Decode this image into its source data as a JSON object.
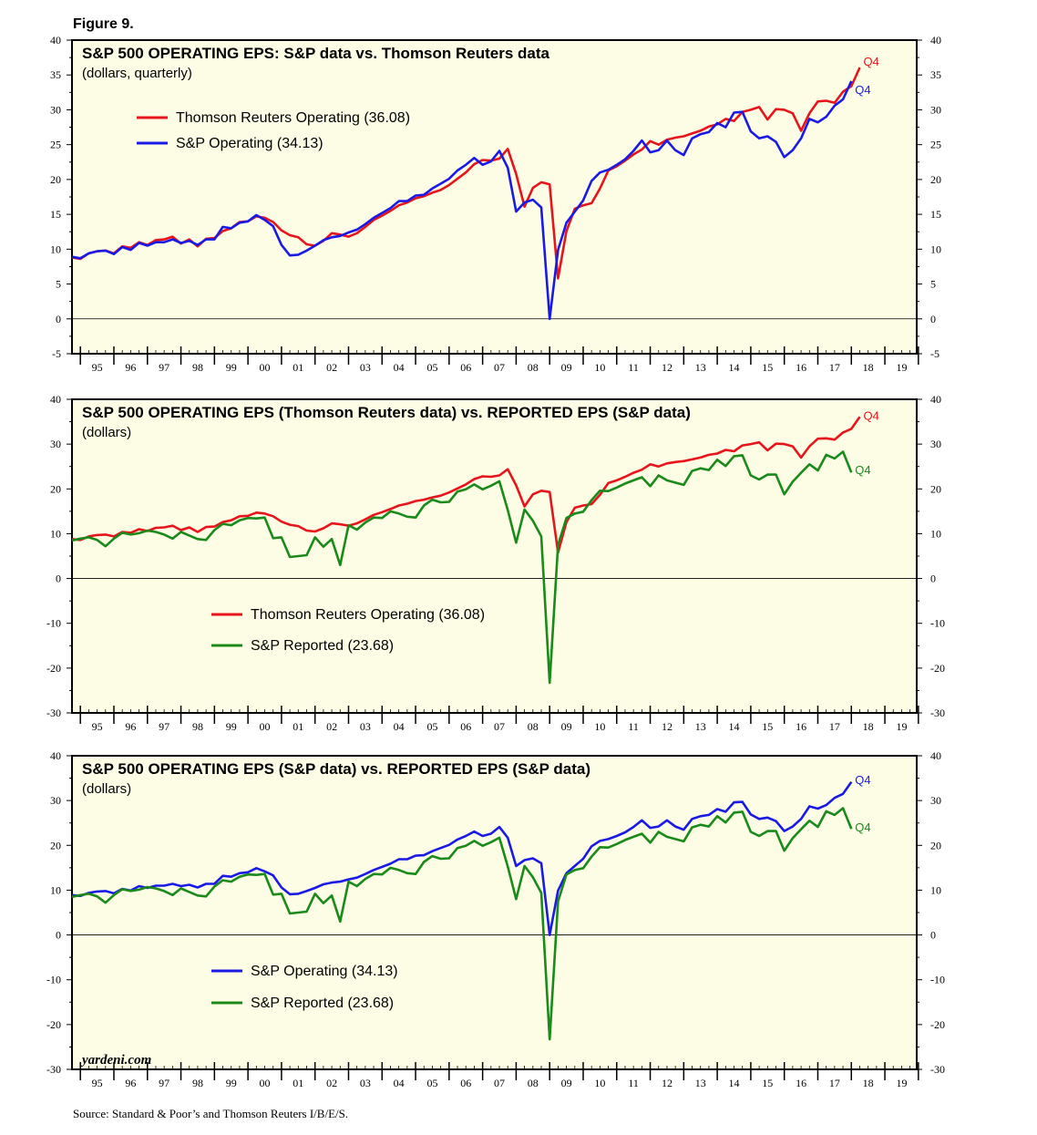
{
  "figure_label": "Figure 9.",
  "source": "Source: Standard & Poor’s and Thomson Reuters I/B/E/S.",
  "watermark": "yardeni.com",
  "colors": {
    "panel_bg": "#fdfde6",
    "thomson": "#e8141b",
    "sp_operating": "#1a1ae6",
    "sp_reported": "#1a8a1a"
  },
  "chart_data": [
    {
      "type": "line",
      "title": "S&P 500 OPERATING EPS: S&P data vs. Thomson Reuters data",
      "subtitle": "(dollars, quarterly)",
      "ylim": [
        -5,
        40
      ],
      "yticks": [
        -5,
        0,
        5,
        10,
        15,
        20,
        25,
        30,
        35,
        40
      ],
      "ytick_labels": [
        "-5",
        "0",
        "5",
        "10",
        "15",
        "20",
        "25",
        "30",
        "35",
        "40"
      ],
      "x_tick_labels": [
        "95",
        "96",
        "97",
        "98",
        "99",
        "00",
        "01",
        "02",
        "03",
        "04",
        "05",
        "06",
        "07",
        "08",
        "09",
        "10",
        "11",
        "12",
        "13",
        "14",
        "15",
        "16",
        "17",
        "18",
        "19"
      ],
      "x_start": "1994 Q4",
      "x_range_years": [
        1994.75,
        2019.95
      ],
      "legend": {
        "position": "upper-left",
        "series": [
          0,
          1
        ]
      },
      "series": [
        {
          "name": "Thomson Reuters Operating (36.08)",
          "color_key": "thomson",
          "end_label": "Q4",
          "values": [
            8.8,
            8.6,
            9.4,
            9.7,
            9.8,
            9.4,
            10.4,
            10.2,
            11.0,
            10.6,
            11.3,
            11.4,
            11.8,
            10.8,
            11.4,
            10.4,
            11.5,
            11.6,
            12.6,
            13.0,
            13.9,
            14.0,
            14.7,
            14.5,
            13.9,
            12.7,
            12.0,
            11.7,
            10.7,
            10.5,
            11.2,
            12.3,
            12.1,
            11.8,
            12.3,
            13.2,
            14.2,
            14.8,
            15.5,
            16.3,
            16.7,
            17.3,
            17.6,
            18.1,
            18.5,
            19.2,
            20.1,
            21.0,
            22.2,
            22.8,
            22.7,
            23.0,
            24.4,
            20.8,
            16.1,
            18.8,
            19.6,
            19.3,
            5.8,
            12.6,
            15.8,
            16.3,
            16.6,
            18.7,
            21.3,
            21.9,
            22.7,
            23.6,
            24.3,
            25.5,
            25.0,
            25.7,
            26.0,
            26.2,
            26.6,
            27.0,
            27.6,
            27.9,
            28.7,
            28.4,
            29.7,
            30.0,
            30.4,
            28.6,
            30.1,
            30.0,
            29.5,
            27.0,
            29.5,
            31.2,
            31.3,
            31.0,
            32.6,
            33.4,
            36.08
          ]
        },
        {
          "name": "S&P Operating (34.13)",
          "color_key": "sp_operating",
          "end_label": "Q4",
          "values": [
            8.9,
            8.7,
            9.4,
            9.7,
            9.8,
            9.3,
            10.3,
            9.9,
            10.9,
            10.5,
            11.0,
            11.0,
            11.4,
            10.9,
            11.2,
            10.6,
            11.4,
            11.4,
            13.2,
            13.0,
            13.8,
            14.0,
            14.9,
            14.2,
            13.3,
            10.6,
            9.1,
            9.2,
            9.8,
            10.5,
            11.3,
            11.7,
            11.9,
            12.4,
            12.8,
            13.6,
            14.5,
            15.2,
            15.9,
            16.9,
            16.9,
            17.7,
            17.8,
            18.7,
            19.4,
            20.1,
            21.3,
            22.1,
            23.1,
            22.1,
            22.6,
            24.1,
            21.7,
            15.4,
            16.7,
            17.1,
            16.0,
            0.0,
            9.9,
            13.8,
            15.4,
            17.0,
            19.8,
            21.0,
            21.4,
            22.1,
            22.9,
            24.1,
            25.6,
            23.9,
            24.2,
            25.6,
            24.2,
            23.5,
            25.9,
            26.5,
            26.8,
            28.1,
            27.5,
            29.6,
            29.7,
            26.9,
            25.9,
            26.2,
            25.4,
            23.2,
            24.2,
            25.9,
            28.7,
            28.2,
            29.0,
            30.6,
            31.5,
            34.13
          ]
        }
      ]
    },
    {
      "type": "line",
      "title": "S&P 500 OPERATING EPS (Thomson Reuters data) vs. REPORTED EPS (S&P data)",
      "subtitle": "(dollars)",
      "ylim": [
        -30,
        40
      ],
      "yticks": [
        -30,
        -20,
        -10,
        0,
        10,
        20,
        30,
        40
      ],
      "ytick_labels": [
        "-30",
        "-20",
        "-10",
        "0",
        "10",
        "20",
        "30",
        "40"
      ],
      "x_tick_labels": [
        "95",
        "96",
        "97",
        "98",
        "99",
        "00",
        "01",
        "02",
        "03",
        "04",
        "05",
        "06",
        "07",
        "08",
        "09",
        "10",
        "11",
        "12",
        "13",
        "14",
        "15",
        "16",
        "17",
        "18",
        "19"
      ],
      "x_start": "1994 Q4",
      "x_range_years": [
        1994.75,
        2019.95
      ],
      "legend": {
        "position": "lower-left",
        "series": [
          0,
          1
        ]
      },
      "series": [
        {
          "name": "Thomson Reuters Operating (36.08)",
          "color_key": "thomson",
          "end_label": "Q4",
          "values": [
            8.8,
            8.6,
            9.4,
            9.7,
            9.8,
            9.4,
            10.4,
            10.2,
            11.0,
            10.6,
            11.3,
            11.4,
            11.8,
            10.8,
            11.4,
            10.4,
            11.5,
            11.6,
            12.6,
            13.0,
            13.9,
            14.0,
            14.7,
            14.5,
            13.9,
            12.7,
            12.0,
            11.7,
            10.7,
            10.5,
            11.2,
            12.3,
            12.1,
            11.8,
            12.3,
            13.2,
            14.2,
            14.8,
            15.5,
            16.3,
            16.7,
            17.3,
            17.6,
            18.1,
            18.5,
            19.2,
            20.1,
            21.0,
            22.2,
            22.8,
            22.7,
            23.0,
            24.4,
            20.8,
            16.1,
            18.8,
            19.6,
            19.3,
            5.8,
            12.6,
            15.8,
            16.3,
            16.6,
            18.7,
            21.3,
            21.9,
            22.7,
            23.6,
            24.3,
            25.5,
            25.0,
            25.7,
            26.0,
            26.2,
            26.6,
            27.0,
            27.6,
            27.9,
            28.7,
            28.4,
            29.7,
            30.0,
            30.4,
            28.6,
            30.1,
            30.0,
            29.5,
            27.0,
            29.5,
            31.2,
            31.3,
            31.0,
            32.6,
            33.4,
            36.08
          ]
        },
        {
          "name": "S&P Reported (23.68)",
          "color_key": "sp_reported",
          "end_label": "Q4",
          "values": [
            8.5,
            8.9,
            9.2,
            8.6,
            7.2,
            8.9,
            10.2,
            9.8,
            10.1,
            10.7,
            10.4,
            9.8,
            8.9,
            10.4,
            9.6,
            8.8,
            8.6,
            10.8,
            12.2,
            11.9,
            13.0,
            13.5,
            13.4,
            13.6,
            9.0,
            9.2,
            4.8,
            5.0,
            5.2,
            9.2,
            7.1,
            8.8,
            3.0,
            11.9,
            10.9,
            12.5,
            13.6,
            13.5,
            15.0,
            14.5,
            13.8,
            13.6,
            16.3,
            17.6,
            17.0,
            17.1,
            19.4,
            19.9,
            21.0,
            19.9,
            20.7,
            21.7,
            15.3,
            8.0,
            15.4,
            12.9,
            9.4,
            -23.3,
            7.5,
            13.5,
            14.5,
            14.9,
            17.5,
            19.6,
            19.5,
            20.3,
            21.2,
            21.9,
            22.6,
            20.6,
            23.0,
            21.9,
            21.4,
            20.9,
            24.0,
            24.6,
            24.2,
            26.5,
            25.1,
            27.3,
            27.5,
            23.0,
            22.1,
            23.2,
            23.2,
            18.8,
            21.6,
            23.6,
            25.5,
            24.1,
            27.6,
            26.8,
            28.3,
            23.68
          ]
        }
      ]
    },
    {
      "type": "line",
      "title": "S&P 500 OPERATING EPS (S&P data) vs. REPORTED EPS (S&P data)",
      "subtitle": "(dollars)",
      "ylim": [
        -30,
        40
      ],
      "yticks": [
        -30,
        -20,
        -10,
        0,
        10,
        20,
        30,
        40
      ],
      "ytick_labels": [
        "-30",
        "-20",
        "-10",
        "0",
        "10",
        "20",
        "30",
        "40"
      ],
      "x_tick_labels": [
        "95",
        "96",
        "97",
        "98",
        "99",
        "00",
        "01",
        "02",
        "03",
        "04",
        "05",
        "06",
        "07",
        "08",
        "09",
        "10",
        "11",
        "12",
        "13",
        "14",
        "15",
        "16",
        "17",
        "18",
        "19"
      ],
      "x_start": "1994 Q4",
      "x_range_years": [
        1994.75,
        2019.95
      ],
      "legend": {
        "position": "lower-left",
        "series": [
          0,
          1
        ]
      },
      "series": [
        {
          "name": "S&P Operating (34.13)",
          "color_key": "sp_operating",
          "end_label": "Q4",
          "values": [
            8.9,
            8.7,
            9.4,
            9.7,
            9.8,
            9.3,
            10.3,
            9.9,
            10.9,
            10.5,
            11.0,
            11.0,
            11.4,
            10.9,
            11.2,
            10.6,
            11.4,
            11.4,
            13.2,
            13.0,
            13.8,
            14.0,
            14.9,
            14.2,
            13.3,
            10.6,
            9.1,
            9.2,
            9.8,
            10.5,
            11.3,
            11.7,
            11.9,
            12.4,
            12.8,
            13.6,
            14.5,
            15.2,
            15.9,
            16.9,
            16.9,
            17.7,
            17.8,
            18.7,
            19.4,
            20.1,
            21.3,
            22.1,
            23.1,
            22.1,
            22.6,
            24.1,
            21.7,
            15.4,
            16.7,
            17.1,
            16.0,
            0.0,
            9.9,
            13.8,
            15.4,
            17.0,
            19.8,
            21.0,
            21.4,
            22.1,
            22.9,
            24.1,
            25.6,
            23.9,
            24.2,
            25.6,
            24.2,
            23.5,
            25.9,
            26.5,
            26.8,
            28.1,
            27.5,
            29.6,
            29.7,
            26.9,
            25.9,
            26.2,
            25.4,
            23.2,
            24.2,
            25.9,
            28.7,
            28.2,
            29.0,
            30.6,
            31.5,
            34.13
          ]
        },
        {
          "name": "S&P Reported (23.68)",
          "color_key": "sp_reported",
          "end_label": "Q4",
          "values": [
            8.5,
            8.9,
            9.2,
            8.6,
            7.2,
            8.9,
            10.2,
            9.8,
            10.1,
            10.7,
            10.4,
            9.8,
            8.9,
            10.4,
            9.6,
            8.8,
            8.6,
            10.8,
            12.2,
            11.9,
            13.0,
            13.5,
            13.4,
            13.6,
            9.0,
            9.2,
            4.8,
            5.0,
            5.2,
            9.2,
            7.1,
            8.8,
            3.0,
            11.9,
            10.9,
            12.5,
            13.6,
            13.5,
            15.0,
            14.5,
            13.8,
            13.6,
            16.3,
            17.6,
            17.0,
            17.1,
            19.4,
            19.9,
            21.0,
            19.9,
            20.7,
            21.7,
            15.3,
            8.0,
            15.4,
            12.9,
            9.4,
            -23.3,
            7.5,
            13.5,
            14.5,
            14.9,
            17.5,
            19.6,
            19.5,
            20.3,
            21.2,
            21.9,
            22.6,
            20.6,
            23.0,
            21.9,
            21.4,
            20.9,
            24.0,
            24.6,
            24.2,
            26.5,
            25.1,
            27.3,
            27.5,
            23.0,
            22.1,
            23.2,
            23.2,
            18.8,
            21.6,
            23.6,
            25.5,
            24.1,
            27.6,
            26.8,
            28.3,
            23.68
          ]
        }
      ]
    }
  ]
}
